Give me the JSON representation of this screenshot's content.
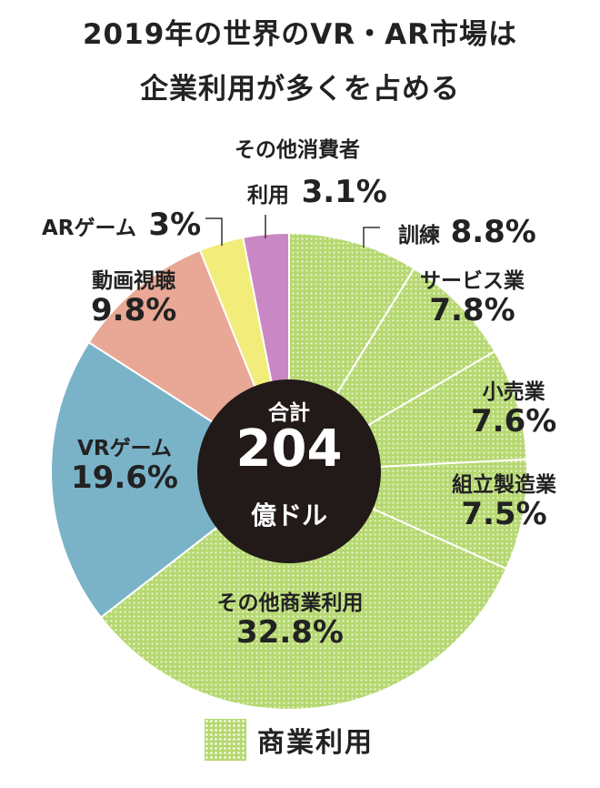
{
  "title": {
    "line1": "2019年の世界のVR・AR市場は",
    "line2": "企業利用が多くを占める"
  },
  "center": {
    "label_top": "合計",
    "value": "204",
    "unit": "億ドル"
  },
  "legend": {
    "label": "商業利用"
  },
  "colors": {
    "commercial": "#b5d870",
    "vr_game": "#7ab3c8",
    "video": "#e8a895",
    "ar_game": "#f2ec7a",
    "other_consumer": "#c987c3",
    "center": "#221a18"
  },
  "chart_data": {
    "type": "pie",
    "title": "2019年の世界のVR・AR市場は企業利用が多くを占める",
    "total": 204,
    "total_unit": "億ドル",
    "unit": "%",
    "slices": [
      {
        "name": "訓練",
        "value": 8.8,
        "label": "8.8%",
        "group": "商業利用",
        "color": "#b5d870"
      },
      {
        "name": "サービス業",
        "value": 7.8,
        "label": "7.8%",
        "group": "商業利用",
        "color": "#b5d870"
      },
      {
        "name": "小売業",
        "value": 7.6,
        "label": "7.6%",
        "group": "商業利用",
        "color": "#b5d870"
      },
      {
        "name": "組立製造業",
        "value": 7.5,
        "label": "7.5%",
        "group": "商業利用",
        "color": "#b5d870"
      },
      {
        "name": "その他商業利用",
        "value": 32.8,
        "label": "32.8%",
        "group": "商業利用",
        "color": "#b5d870"
      },
      {
        "name": "VRゲーム",
        "value": 19.6,
        "label": "19.6%",
        "group": "",
        "color": "#7ab3c8"
      },
      {
        "name": "動画視聴",
        "value": 9.8,
        "label": "9.8%",
        "group": "",
        "color": "#e8a895"
      },
      {
        "name": "ARゲーム",
        "value": 3,
        "label": "3%",
        "group": "",
        "color": "#f2ec7a"
      },
      {
        "name": "その他消費者利用",
        "value": 3.1,
        "label": "3.1%",
        "group": "",
        "color": "#c987c3"
      }
    ],
    "label_text": {
      "training": {
        "name": "訓練",
        "value": "8.8%"
      },
      "service": {
        "name": "サービス業",
        "value": "7.8%"
      },
      "retail": {
        "name": "小売業",
        "value": "7.6%"
      },
      "assembly": {
        "name": "組立製造業",
        "value": "7.5%"
      },
      "other_commercial": {
        "name": "その他商業利用",
        "value": "32.8%"
      },
      "vr_game": {
        "name": "VRゲーム",
        "value": "19.6%"
      },
      "video": {
        "name": "動画視聴",
        "value": "9.8%"
      },
      "ar_game": {
        "name": "ARゲーム",
        "value": "3%"
      },
      "other_consumer": {
        "name_line1": "その他消費者",
        "name_line2": "利用",
        "value": "3.1%"
      }
    }
  }
}
